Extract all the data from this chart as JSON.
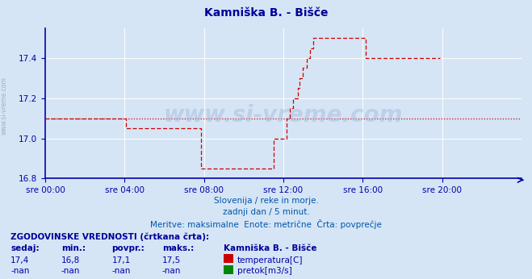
{
  "title": "Kamniška B. - Bišče",
  "title_color": "#000099",
  "bg_color": "#d5e5f5",
  "plot_bg_color": "#d5e5f5",
  "grid_color": "#ffffff",
  "axis_color": "#0000aa",
  "text_color": "#0000aa",
  "line_color": "#cc0000",
  "xlim": [
    0,
    288
  ],
  "ylim": [
    16.8,
    17.55
  ],
  "yticks": [
    16.8,
    17.0,
    17.2,
    17.4
  ],
  "xtick_labels": [
    "sre 00:00",
    "sre 04:00",
    "sre 08:00",
    "sre 12:00",
    "sre 16:00",
    "sre 20:00"
  ],
  "xtick_positions": [
    0,
    48,
    96,
    144,
    192,
    240
  ],
  "watermark": "www.si-vreme.com",
  "subtitle1": "Slovenija / reke in morje.",
  "subtitle2": "zadnji dan / 5 minut.",
  "subtitle3": "Meritve: maksimalne  Enote: metrične  Črta: povprečje",
  "legend_title": "Kamniška B. - Bišče",
  "stat_label1": "ZGODOVINSKE VREDNOSTI (črtkana črta):",
  "col_sedaj": "sedaj:",
  "col_min": "min.:",
  "col_povpr": "povpr.:",
  "col_maks": "maks.:",
  "temp_sedaj": "17,4",
  "temp_min": "16,8",
  "temp_povpr": "17,1",
  "temp_maks": "17,5",
  "pretok_sedaj": "-nan",
  "pretok_min": "-nan",
  "pretok_povpr": "-nan",
  "pretok_maks": "-nan",
  "temp_label": "temperatura[C]",
  "pretok_label": "pretok[m3/s]",
  "temp_icon_color": "#cc0000",
  "pretok_icon_color": "#008800",
  "avg_value": 17.1,
  "temp_data": [
    17.1,
    17.1,
    17.1,
    17.1,
    17.1,
    17.1,
    17.1,
    17.1,
    17.1,
    17.1,
    17.1,
    17.1,
    17.1,
    17.1,
    17.1,
    17.1,
    17.1,
    17.1,
    17.1,
    17.1,
    17.1,
    17.1,
    17.1,
    17.1,
    17.1,
    17.1,
    17.1,
    17.1,
    17.1,
    17.1,
    17.1,
    17.1,
    17.1,
    17.1,
    17.1,
    17.1,
    17.1,
    17.1,
    17.1,
    17.1,
    17.1,
    17.1,
    17.1,
    17.1,
    17.1,
    17.1,
    17.1,
    17.1,
    17.1,
    17.05,
    17.05,
    17.05,
    17.05,
    17.05,
    17.05,
    17.05,
    17.05,
    17.05,
    17.05,
    17.05,
    17.05,
    17.05,
    17.05,
    17.05,
    17.05,
    17.05,
    17.05,
    17.05,
    17.05,
    17.05,
    17.05,
    17.05,
    17.05,
    17.05,
    17.05,
    17.05,
    17.05,
    17.05,
    17.05,
    17.05,
    17.05,
    17.05,
    17.05,
    17.05,
    17.05,
    17.05,
    17.05,
    17.05,
    17.05,
    17.05,
    17.05,
    17.05,
    17.05,
    17.05,
    16.85,
    16.85,
    16.85,
    16.85,
    16.85,
    16.85,
    16.85,
    16.85,
    16.85,
    16.85,
    16.85,
    16.85,
    16.85,
    16.85,
    16.85,
    16.85,
    16.85,
    16.85,
    16.85,
    16.85,
    16.85,
    16.85,
    16.85,
    16.85,
    16.85,
    16.85,
    16.85,
    16.85,
    16.85,
    16.85,
    16.85,
    16.85,
    16.85,
    16.85,
    16.85,
    16.85,
    16.85,
    16.85,
    16.85,
    16.85,
    16.85,
    16.85,
    16.85,
    16.85,
    17.0,
    17.0,
    17.0,
    17.0,
    17.0,
    17.0,
    17.0,
    17.0,
    17.1,
    17.1,
    17.15,
    17.15,
    17.2,
    17.2,
    17.2,
    17.25,
    17.3,
    17.3,
    17.35,
    17.35,
    17.4,
    17.4,
    17.45,
    17.45,
    17.5,
    17.5,
    17.5,
    17.5,
    17.5,
    17.5,
    17.5,
    17.5,
    17.5,
    17.5,
    17.5,
    17.5,
    17.5,
    17.5,
    17.5,
    17.5,
    17.5,
    17.5,
    17.5,
    17.5,
    17.5,
    17.5,
    17.5,
    17.5,
    17.5,
    17.5,
    17.5,
    17.5,
    17.5,
    17.5,
    17.5,
    17.5,
    17.4,
    17.4,
    17.4,
    17.4,
    17.4,
    17.4,
    17.4,
    17.4,
    17.4,
    17.4,
    17.4,
    17.4,
    17.4,
    17.4,
    17.4,
    17.4,
    17.4,
    17.4,
    17.4,
    17.4,
    17.4,
    17.4,
    17.4,
    17.4,
    17.4,
    17.4,
    17.4,
    17.4,
    17.4,
    17.4,
    17.4,
    17.4,
    17.4,
    17.4,
    17.4,
    17.4,
    17.4,
    17.4,
    17.4,
    17.4,
    17.4,
    17.4,
    17.4,
    17.4,
    17.4,
    17.4
  ]
}
